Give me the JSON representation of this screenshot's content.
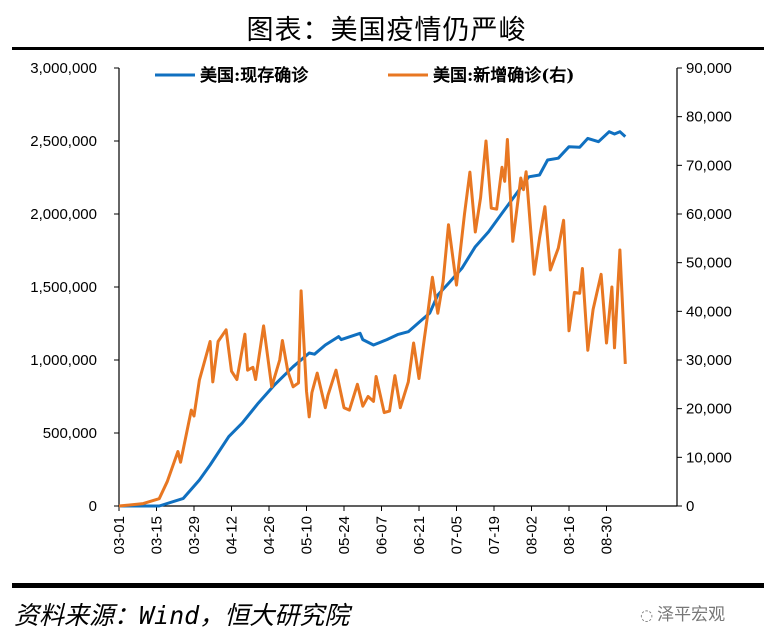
{
  "title": "图表：美国疫情仍严峻",
  "source": "资料来源：Wind，恒大研究院",
  "watermark": "泽平宏观",
  "chart_data": {
    "type": "line",
    "title": "图表：美国疫情仍严峻",
    "x_start": "03-01",
    "x_unit": "days since 03-01",
    "x_ticks": [
      "03-01",
      "03-15",
      "03-29",
      "04-12",
      "04-26",
      "05-10",
      "05-24",
      "06-07",
      "06-21",
      "07-05",
      "07-19",
      "08-02",
      "08-16",
      "08-30"
    ],
    "xlim": [
      0,
      191
    ],
    "left_axis": {
      "ylim": [
        0,
        3000000
      ],
      "ticks": [
        "0",
        "500,000",
        "1,000,000",
        "1,500,000",
        "2,000,000",
        "2,500,000",
        "3,000,000"
      ]
    },
    "right_axis": {
      "ylim": [
        0,
        90000
      ],
      "ticks": [
        "0",
        "10,000",
        "20,000",
        "30,000",
        "40,000",
        "50,000",
        "60,000",
        "70,000",
        "80,000",
        "90,000"
      ]
    },
    "legend_position": "top",
    "series": [
      {
        "name": "美国:现存确诊",
        "axis": "left",
        "color": "#1070C0",
        "points": [
          [
            0,
            0
          ],
          [
            15,
            0
          ],
          [
            24,
            52000
          ],
          [
            30,
            178000
          ],
          [
            34,
            281000
          ],
          [
            41,
            475000
          ],
          [
            46,
            568000
          ],
          [
            52,
            705000
          ],
          [
            58,
            829000
          ],
          [
            65,
            954000
          ],
          [
            71,
            1048000
          ],
          [
            73,
            1040000
          ],
          [
            77,
            1103000
          ],
          [
            82,
            1160000
          ],
          [
            83,
            1140000
          ],
          [
            90,
            1183000
          ],
          [
            91,
            1140000
          ],
          [
            95,
            1103000
          ],
          [
            100,
            1140000
          ],
          [
            104,
            1174000
          ],
          [
            108,
            1194000
          ],
          [
            113,
            1274000
          ],
          [
            116,
            1321000
          ],
          [
            119,
            1445000
          ],
          [
            123,
            1525000
          ],
          [
            128,
            1628000
          ],
          [
            133,
            1776000
          ],
          [
            138,
            1879000
          ],
          [
            143,
            2005000
          ],
          [
            148,
            2130000
          ],
          [
            153,
            2255000
          ],
          [
            157,
            2267000
          ],
          [
            160,
            2370000
          ],
          [
            164,
            2382000
          ],
          [
            168,
            2461000
          ],
          [
            172,
            2457000
          ],
          [
            175,
            2518000
          ],
          [
            179,
            2495000
          ],
          [
            183,
            2564000
          ],
          [
            185,
            2548000
          ],
          [
            187,
            2564000
          ],
          [
            189,
            2530000
          ]
        ]
      },
      {
        "name": "美国:新增确诊(右)",
        "axis": "right",
        "color": "#E87722",
        "points": [
          [
            0,
            0
          ],
          [
            9,
            500
          ],
          [
            15,
            1500
          ],
          [
            18,
            5000
          ],
          [
            22,
            11200
          ],
          [
            23,
            9000
          ],
          [
            27,
            19700
          ],
          [
            28,
            18500
          ],
          [
            30,
            25900
          ],
          [
            34,
            33800
          ],
          [
            35,
            25500
          ],
          [
            37,
            33800
          ],
          [
            40,
            36200
          ],
          [
            42,
            27700
          ],
          [
            44,
            26000
          ],
          [
            47,
            35300
          ],
          [
            48,
            27900
          ],
          [
            50,
            28500
          ],
          [
            51,
            26000
          ],
          [
            54,
            37000
          ],
          [
            57,
            24500
          ],
          [
            60,
            30000
          ],
          [
            61,
            34000
          ],
          [
            63,
            27700
          ],
          [
            65,
            24500
          ],
          [
            67,
            25300
          ],
          [
            68,
            44200
          ],
          [
            70,
            23600
          ],
          [
            71,
            18300
          ],
          [
            72,
            23300
          ],
          [
            74,
            27300
          ],
          [
            77,
            20200
          ],
          [
            78,
            22700
          ],
          [
            81,
            27900
          ],
          [
            84,
            20200
          ],
          [
            86,
            19700
          ],
          [
            89,
            25000
          ],
          [
            91,
            20500
          ],
          [
            93,
            22500
          ],
          [
            95,
            21500
          ],
          [
            96,
            26600
          ],
          [
            99,
            19200
          ],
          [
            101,
            19500
          ],
          [
            103,
            26800
          ],
          [
            105,
            20200
          ],
          [
            108,
            25500
          ],
          [
            110,
            33500
          ],
          [
            112,
            26200
          ],
          [
            114,
            34500
          ],
          [
            115,
            38300
          ],
          [
            117,
            47000
          ],
          [
            119,
            39600
          ],
          [
            121,
            46100
          ],
          [
            123,
            57800
          ],
          [
            126,
            45400
          ],
          [
            129,
            60000
          ],
          [
            131,
            68600
          ],
          [
            133,
            56300
          ],
          [
            135,
            63400
          ],
          [
            137,
            75000
          ],
          [
            139,
            61200
          ],
          [
            141,
            61000
          ],
          [
            143,
            69600
          ],
          [
            144,
            66700
          ],
          [
            145,
            75300
          ],
          [
            147,
            54400
          ],
          [
            150,
            67400
          ],
          [
            151,
            65000
          ],
          [
            152,
            68700
          ],
          [
            155,
            47600
          ],
          [
            157,
            55000
          ],
          [
            159,
            61500
          ],
          [
            161,
            48500
          ],
          [
            164,
            53000
          ],
          [
            166,
            58700
          ],
          [
            168,
            36000
          ],
          [
            170,
            43900
          ],
          [
            172,
            43700
          ],
          [
            173,
            48800
          ],
          [
            175,
            32000
          ],
          [
            177,
            40400
          ],
          [
            180,
            47600
          ],
          [
            182,
            33500
          ],
          [
            184,
            45000
          ],
          [
            185,
            32500
          ],
          [
            187,
            52600
          ],
          [
            189,
            29200
          ]
        ]
      }
    ]
  }
}
